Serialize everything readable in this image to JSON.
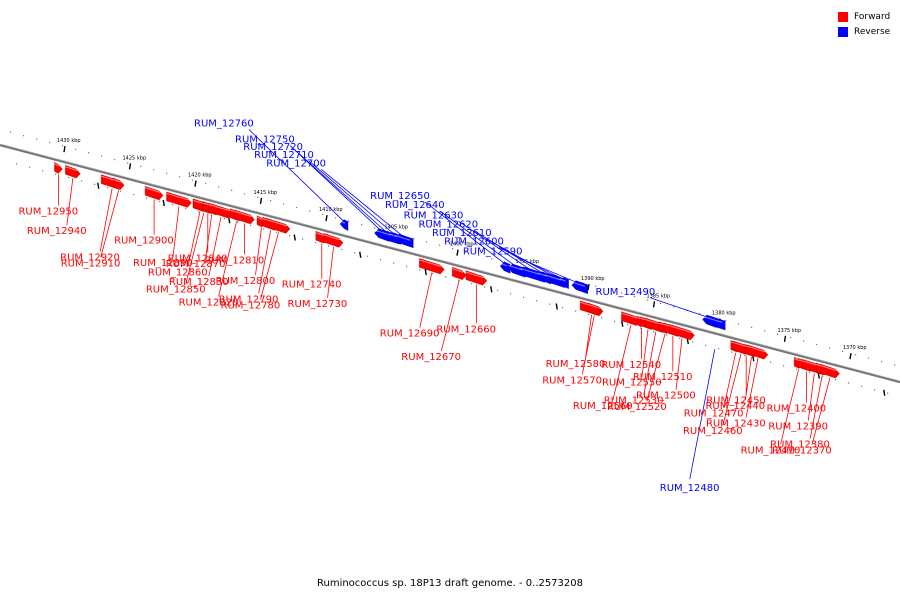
{
  "title": "Ruminococcus sp. 18P13 draft genome. - 0..2573208",
  "legend": [
    {
      "label": "Forward",
      "color": "#ff0000"
    },
    {
      "label": "Reverse",
      "color": "#0000ff"
    }
  ],
  "colors": {
    "forward": "#ff0000",
    "reverse": "#0000ff",
    "backbone": "#808080"
  },
  "ticks": [
    {
      "label": "1430 kbp",
      "kbp": 1430
    },
    {
      "label": "1425 kbp",
      "kbp": 1425
    },
    {
      "label": "1420 kbp",
      "kbp": 1420
    },
    {
      "label": "1415 kbp",
      "kbp": 1415
    },
    {
      "label": "1410 kbp",
      "kbp": 1410
    },
    {
      "label": "1405 kbp",
      "kbp": 1405
    },
    {
      "label": "1400 kbp",
      "kbp": 1400
    },
    {
      "label": "1395 kbp",
      "kbp": 1395
    },
    {
      "label": "1390 kbp",
      "kbp": 1390
    },
    {
      "label": "1385 kbp",
      "kbp": 1385
    },
    {
      "label": "1380 kbp",
      "kbp": 1380
    },
    {
      "label": "1375 kbp",
      "kbp": 1375
    },
    {
      "label": "1370 kbp",
      "kbp": 1370
    }
  ],
  "genes": [
    {
      "label": "RUM_12950",
      "strand": "forward",
      "kbp": 1430.5
    },
    {
      "label": "RUM_12940",
      "strand": "forward",
      "kbp": 1429.4
    },
    {
      "label": "RUM_12920",
      "strand": "forward",
      "kbp": 1426.4
    },
    {
      "label": "RUM_12910",
      "strand": "forward",
      "kbp": 1425.9
    },
    {
      "label": "RUM_12900",
      "strand": "forward",
      "kbp": 1423.2
    },
    {
      "label": "RUM_12890",
      "strand": "forward",
      "kbp": 1421.3
    },
    {
      "label": "RUM_12860",
      "strand": "forward",
      "kbp": 1419.7
    },
    {
      "label": "RUM_12850",
      "strand": "forward",
      "kbp": 1419.4
    },
    {
      "label": "RUM_12840",
      "strand": "forward",
      "kbp": 1419.1
    },
    {
      "label": "RUM_12870",
      "strand": "forward",
      "kbp": 1418.8
    },
    {
      "label": "RUM_12830",
      "strand": "forward",
      "kbp": 1418.1
    },
    {
      "label": "RUM_12820",
      "strand": "forward",
      "kbp": 1416.9
    },
    {
      "label": "RUM_12810",
      "strand": "forward",
      "kbp": 1416.3
    },
    {
      "label": "RUM_12800",
      "strand": "forward",
      "kbp": 1415.0
    },
    {
      "label": "RUM_12790",
      "strand": "forward",
      "kbp": 1414.3
    },
    {
      "label": "RUM_12780",
      "strand": "forward",
      "kbp": 1413.7
    },
    {
      "label": "RUM_12740",
      "strand": "forward",
      "kbp": 1410.4
    },
    {
      "label": "RUM_12730",
      "strand": "forward",
      "kbp": 1409.5
    },
    {
      "label": "RUM_12760",
      "strand": "reverse",
      "kbp": 1408.7
    },
    {
      "label": "RUM_12750",
      "strand": "reverse",
      "kbp": 1405.8
    },
    {
      "label": "RUM_12720",
      "strand": "reverse",
      "kbp": 1405.4
    },
    {
      "label": "RUM_12710",
      "strand": "reverse",
      "kbp": 1404.8
    },
    {
      "label": "RUM_12700",
      "strand": "reverse",
      "kbp": 1404.1
    },
    {
      "label": "RUM_12690",
      "strand": "forward",
      "kbp": 1402.0
    },
    {
      "label": "RUM_12670",
      "strand": "forward",
      "kbp": 1399.9
    },
    {
      "label": "RUM_12660",
      "strand": "forward",
      "kbp": 1398.6
    },
    {
      "label": "RUM_12650",
      "strand": "reverse",
      "kbp": 1396.4
    },
    {
      "label": "RUM_12640",
      "strand": "reverse",
      "kbp": 1395.5
    },
    {
      "label": "RUM_12630",
      "strand": "reverse",
      "kbp": 1394.3
    },
    {
      "label": "RUM_12620",
      "strand": "reverse",
      "kbp": 1393.4
    },
    {
      "label": "RUM_12610",
      "strand": "reverse",
      "kbp": 1392.6
    },
    {
      "label": "RUM_12600",
      "strand": "reverse",
      "kbp": 1391.9
    },
    {
      "label": "RUM_12590",
      "strand": "reverse",
      "kbp": 1390.7
    },
    {
      "label": "RUM_12580",
      "strand": "forward",
      "kbp": 1389.8
    },
    {
      "label": "RUM_12570",
      "strand": "forward",
      "kbp": 1389.6
    },
    {
      "label": "RUM_12560",
      "strand": "forward",
      "kbp": 1386.8
    },
    {
      "label": "RUM_12540",
      "strand": "forward",
      "kbp": 1386.0
    },
    {
      "label": "RUM_12550",
      "strand": "forward",
      "kbp": 1385.5
    },
    {
      "label": "RUM_12530",
      "strand": "forward",
      "kbp": 1384.9
    },
    {
      "label": "RUM_12520",
      "strand": "forward",
      "kbp": 1384.2
    },
    {
      "label": "RUM_12510",
      "strand": "forward",
      "kbp": 1383.6
    },
    {
      "label": "RUM_12500",
      "strand": "forward",
      "kbp": 1382.9
    },
    {
      "label": "RUM_12490",
      "strand": "reverse",
      "kbp": 1380.8
    },
    {
      "label": "RUM_12480",
      "strand": "reverse",
      "kbp": 1380.4
    },
    {
      "label": "RUM_12470",
      "strand": "forward",
      "kbp": 1378.8
    },
    {
      "label": "RUM_12460",
      "strand": "forward",
      "kbp": 1378.4
    },
    {
      "label": "RUM_12450",
      "strand": "forward",
      "kbp": 1378.0
    },
    {
      "label": "RUM_12440",
      "strand": "forward",
      "kbp": 1377.6
    },
    {
      "label": "RUM_12430",
      "strand": "forward",
      "kbp": 1377.1
    },
    {
      "label": "RUM_12410",
      "strand": "forward",
      "kbp": 1374.0
    },
    {
      "label": "RUM_12400",
      "strand": "forward",
      "kbp": 1373.4
    },
    {
      "label": "RUM_12390",
      "strand": "forward",
      "kbp": 1372.8
    },
    {
      "label": "RUM_12380",
      "strand": "forward",
      "kbp": 1372.2
    },
    {
      "label": "RUM_12370",
      "strand": "forward",
      "kbp": 1371.6
    }
  ]
}
